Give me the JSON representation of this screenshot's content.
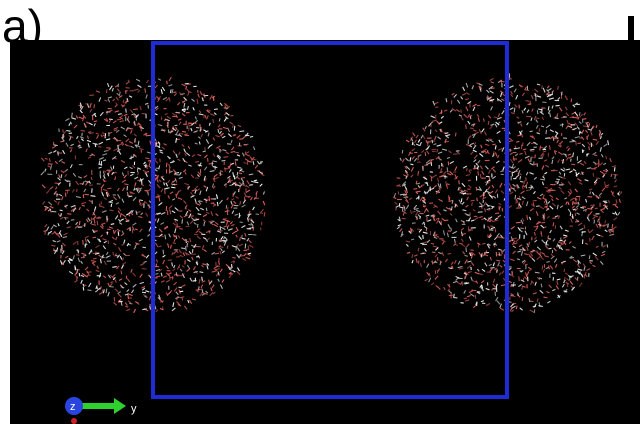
{
  "panel_label": "a)",
  "colors": {
    "background": "#000000",
    "box": "#1f2bd6",
    "oxygen": "#e0605a",
    "hydrogen": "#f2f2f2",
    "axis_y": "#2fd12f",
    "axis_z": "#2a44e0"
  },
  "axes": {
    "z_label": "z",
    "y_label": "y"
  }
}
